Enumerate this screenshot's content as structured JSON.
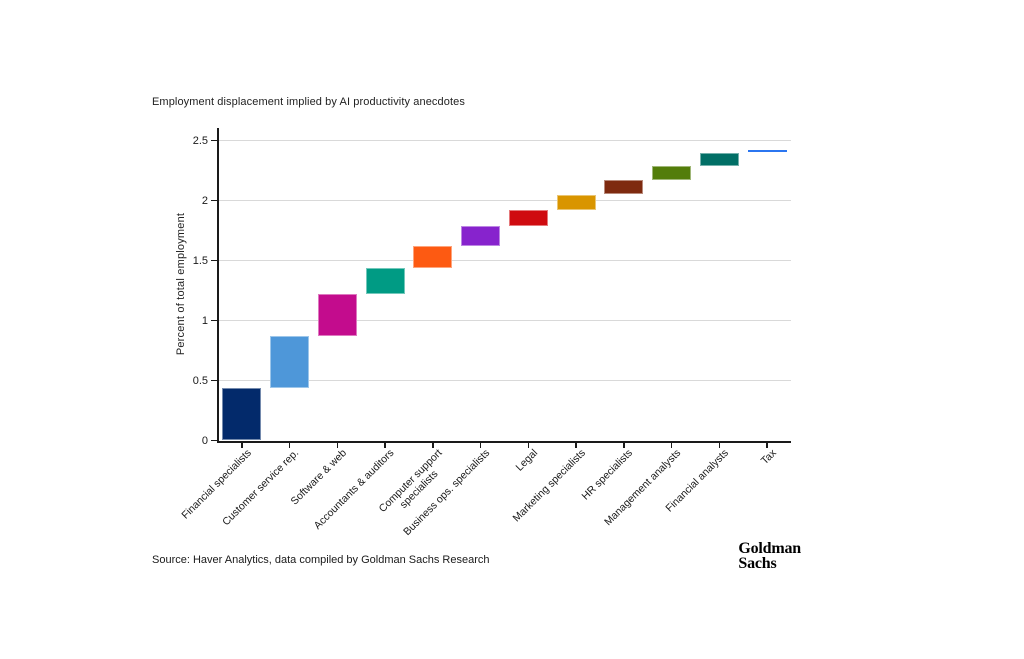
{
  "header": {
    "title": "Employment displacement implied by AI productivity anecdotes"
  },
  "footer": {
    "source": "Source: Haver Analytics, data compiled by Goldman Sachs Research",
    "logo_line1": "Goldman",
    "logo_line2": "Sachs"
  },
  "chart_data": {
    "type": "bar",
    "subtype": "waterfall",
    "title": "Employment displacement implied by AI productivity anecdotes",
    "xlabel": "",
    "ylabel": "Percent of total employment",
    "ylim": [
      0,
      2.6
    ],
    "yticks": [
      0,
      0.5,
      1,
      1.5,
      2,
      2.5
    ],
    "grid": "horizontal",
    "legend": "none",
    "categories": [
      "Financial specialists",
      "Customer service rep.",
      "Software & web",
      "Accountants & auditors",
      "Computer support\nspecialists",
      "Business ops. specialists",
      "Legal",
      "Marketing specialists",
      "HR specialists",
      "Management analysts",
      "Financial analysts",
      "Tax"
    ],
    "segments": [
      {
        "label": "Financial specialists",
        "start": 0.0,
        "end": 0.44,
        "color": "#032a6b"
      },
      {
        "label": "Customer service rep.",
        "start": 0.44,
        "end": 0.87,
        "color": "#4e97d9"
      },
      {
        "label": "Software & web",
        "start": 0.87,
        "end": 1.22,
        "color": "#c30c8d"
      },
      {
        "label": "Accountants & auditors",
        "start": 1.22,
        "end": 1.44,
        "color": "#009b84"
      },
      {
        "label": "Computer support specialists",
        "start": 1.44,
        "end": 1.62,
        "color": "#fd5a12"
      },
      {
        "label": "Business ops. specialists",
        "start": 1.62,
        "end": 1.79,
        "color": "#8723cd"
      },
      {
        "label": "Legal",
        "start": 1.79,
        "end": 1.92,
        "color": "#cf0b10"
      },
      {
        "label": "Marketing specialists",
        "start": 1.92,
        "end": 2.05,
        "color": "#d99500"
      },
      {
        "label": "HR specialists",
        "start": 2.05,
        "end": 2.17,
        "color": "#7e2a0f"
      },
      {
        "label": "Management analysts",
        "start": 2.17,
        "end": 2.29,
        "color": "#537d0a"
      },
      {
        "label": "Financial analysts",
        "start": 2.29,
        "end": 2.4,
        "color": "#016f66"
      },
      {
        "label": "Tax",
        "start": 2.4,
        "end": 2.42,
        "color": "#2b76f0"
      }
    ]
  }
}
